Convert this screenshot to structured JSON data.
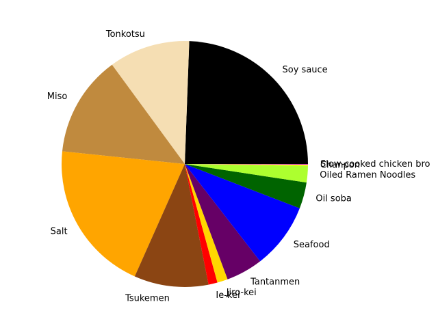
{
  "chart_data": {
    "type": "pie",
    "start_angle_deg": 0,
    "direction": "counterclockwise",
    "legend": "none",
    "slices": [
      {
        "label": "Soy sauce",
        "value": 24.8,
        "color": "#000000"
      },
      {
        "label": "Tonkotsu",
        "value": 10.8,
        "color": "#f5deb3"
      },
      {
        "label": "Miso",
        "value": 13.5,
        "color": "#c08a3e"
      },
      {
        "label": "Salt",
        "value": 20.3,
        "color": "#ffa500"
      },
      {
        "label": "Tsukemen",
        "value": 9.9,
        "color": "#8b4513"
      },
      {
        "label": "Ie-kei",
        "value": 1.2,
        "color": "#ff0000"
      },
      {
        "label": "Jiro-kei",
        "value": 1.4,
        "color": "#ffd700"
      },
      {
        "label": "Tantanmen",
        "value": 4.9,
        "color": "#660066"
      },
      {
        "label": "Seafood",
        "value": 8.8,
        "color": "#0000ff"
      },
      {
        "label": "Oil soba",
        "value": 3.5,
        "color": "#006400"
      },
      {
        "label": "Oiled Ramen Noodles",
        "value": 2.2,
        "color": "#adff2f"
      },
      {
        "label": "Chanpon",
        "value": 0.15,
        "color": "#ffff00"
      },
      {
        "label": "Slow-cooked chicken bro",
        "value": 0.1,
        "color": "#cc33cc"
      }
    ]
  }
}
